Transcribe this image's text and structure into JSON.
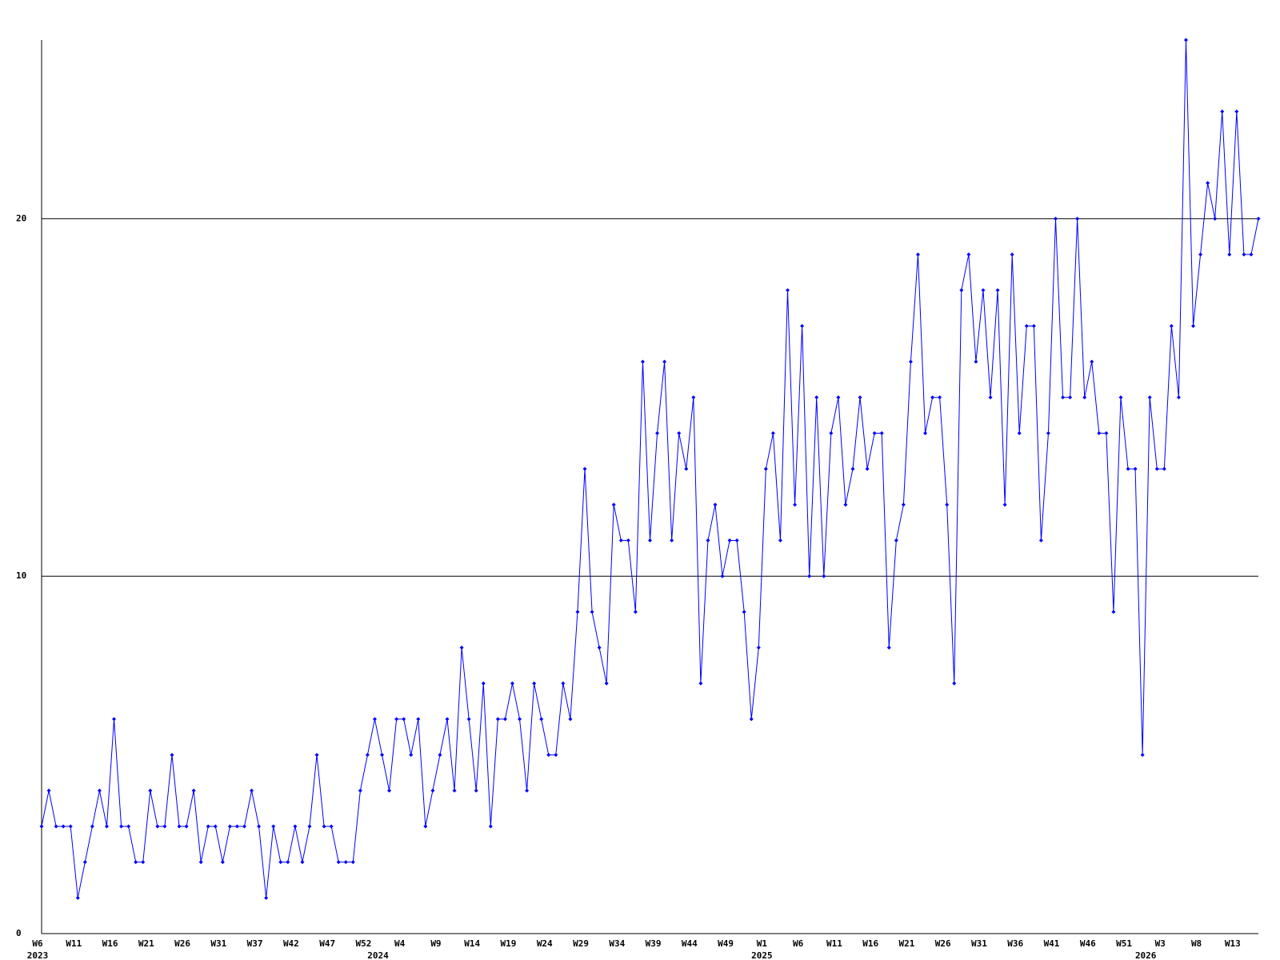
{
  "chart_data": {
    "type": "line",
    "color": "#0000ff",
    "grid": true,
    "ylim": [
      0,
      25
    ],
    "yticks": [
      0,
      10,
      20
    ],
    "values": [
      3,
      4,
      3,
      3,
      3,
      1,
      2,
      3,
      4,
      3,
      6,
      3,
      3,
      2,
      2,
      4,
      3,
      3,
      5,
      3,
      3,
      4,
      2,
      3,
      3,
      2,
      3,
      3,
      3,
      4,
      3,
      1,
      3,
      2,
      2,
      3,
      2,
      3,
      5,
      3,
      3,
      2,
      2,
      2,
      4,
      5,
      6,
      5,
      4,
      6,
      6,
      5,
      6,
      3,
      4,
      5,
      6,
      4,
      8,
      6,
      4,
      7,
      3,
      6,
      6,
      7,
      6,
      4,
      7,
      6,
      5,
      5,
      7,
      6,
      9,
      13,
      9,
      8,
      7,
      12,
      11,
      11,
      9,
      16,
      11,
      14,
      16,
      11,
      14,
      13,
      15,
      7,
      11,
      12,
      10,
      11,
      11,
      9,
      6,
      8,
      13,
      14,
      11,
      18,
      12,
      17,
      10,
      15,
      10,
      14,
      15,
      12,
      13,
      15,
      13,
      14,
      14,
      8,
      11,
      12,
      16,
      19,
      14,
      15,
      15,
      12,
      7,
      18,
      19,
      16,
      18,
      15,
      18,
      12,
      19,
      14,
      17,
      17,
      11,
      14,
      20,
      15,
      15,
      20,
      15,
      16,
      14,
      14,
      9,
      15,
      13,
      13,
      5,
      15,
      13,
      13,
      17,
      15,
      25,
      17,
      19,
      21,
      20,
      23,
      19,
      23,
      19,
      19,
      20
    ],
    "categories": [
      "W6",
      null,
      null,
      null,
      null,
      "W11",
      null,
      null,
      null,
      null,
      "W16",
      null,
      null,
      null,
      null,
      "W21",
      null,
      null,
      null,
      null,
      "W26",
      null,
      null,
      null,
      null,
      "W31",
      null,
      null,
      null,
      null,
      "W37",
      null,
      null,
      null,
      null,
      "W42",
      null,
      null,
      null,
      null,
      "W47",
      null,
      null,
      null,
      null,
      "W52",
      null,
      null,
      null,
      null,
      "W4",
      null,
      null,
      null,
      null,
      "W9",
      null,
      null,
      null,
      null,
      "W14",
      null,
      null,
      null,
      null,
      "W19",
      null,
      null,
      null,
      null,
      "W24",
      null,
      null,
      null,
      null,
      "W29",
      null,
      null,
      null,
      null,
      "W34",
      null,
      null,
      null,
      null,
      "W39",
      null,
      null,
      null,
      null,
      "W44",
      null,
      null,
      null,
      null,
      "W49",
      null,
      null,
      null,
      null,
      "W1",
      null,
      null,
      null,
      null,
      "W6",
      null,
      null,
      null,
      null,
      "W11",
      null,
      null,
      null,
      null,
      "W16",
      null,
      null,
      null,
      null,
      "W21",
      null,
      null,
      null,
      null,
      "W26",
      null,
      null,
      null,
      null,
      "W31",
      null,
      null,
      null,
      null,
      "W36",
      null,
      null,
      null,
      null,
      "W41",
      null,
      null,
      null,
      null,
      "W46",
      null,
      null,
      null,
      null,
      "W51",
      null,
      null,
      null,
      null,
      "W3",
      null,
      null,
      null,
      null,
      "W8",
      null,
      null,
      null,
      null,
      "W13",
      null,
      null,
      null
    ],
    "years": [
      "2023",
      null,
      null,
      null,
      null,
      null,
      null,
      null,
      null,
      null,
      null,
      null,
      null,
      null,
      null,
      null,
      null,
      null,
      null,
      null,
      null,
      null,
      null,
      null,
      null,
      null,
      null,
      null,
      null,
      null,
      null,
      null,
      null,
      null,
      null,
      null,
      null,
      null,
      null,
      null,
      null,
      null,
      null,
      null,
      null,
      null,
      null,
      "2024",
      null,
      null,
      null,
      null,
      null,
      null,
      null,
      null,
      null,
      null,
      null,
      null,
      null,
      null,
      null,
      null,
      null,
      null,
      null,
      null,
      null,
      null,
      null,
      null,
      null,
      null,
      null,
      null,
      null,
      null,
      null,
      null,
      null,
      null,
      null,
      null,
      null,
      null,
      null,
      null,
      null,
      null,
      null,
      null,
      null,
      null,
      null,
      null,
      null,
      null,
      null,
      null,
      "2025",
      null,
      null,
      null,
      null,
      null,
      null,
      null,
      null,
      null,
      null,
      null,
      null,
      null,
      null,
      null,
      null,
      null,
      null,
      null,
      null,
      null,
      null,
      null,
      null,
      null,
      null,
      null,
      null,
      null,
      null,
      null,
      null,
      null,
      null,
      null,
      null,
      null,
      null,
      null,
      null,
      null,
      null,
      null,
      null,
      null,
      null,
      null,
      null,
      null,
      null,
      null,
      null,
      "2026",
      null,
      null,
      null,
      null,
      null,
      null,
      null,
      null,
      null,
      null,
      null,
      null,
      null,
      null,
      null
    ]
  }
}
